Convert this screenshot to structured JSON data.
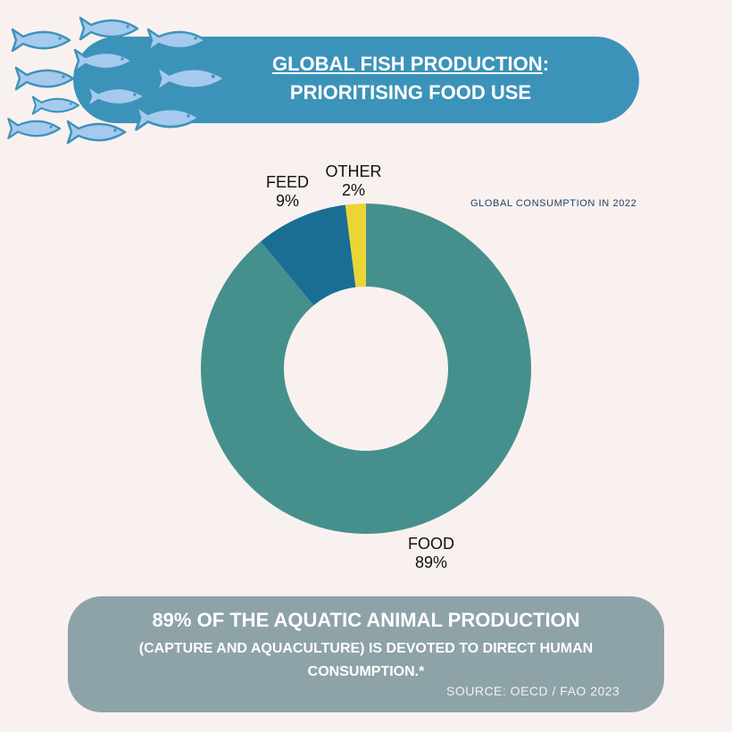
{
  "header": {
    "title_main": "GLOBAL FISH PRODUCTION",
    "title_colon": ":",
    "title_sub": "PRIORITISING FOOD USE"
  },
  "chart_subtitle": "GLOBAL CONSUMPTION IN 2022",
  "chart_data": {
    "type": "pie",
    "subtitle": "GLOBAL CONSUMPTION IN 2022",
    "categories": [
      "FOOD",
      "FEED",
      "OTHER"
    ],
    "values": [
      89,
      9,
      2
    ],
    "value_labels": [
      "89%",
      "9%",
      "2%"
    ],
    "colors": [
      "#45908c",
      "#1a6e94",
      "#ead534"
    ],
    "donut": true
  },
  "labels": {
    "food_name": "FOOD",
    "food_value": "89%",
    "feed_name": "FEED",
    "feed_value": "9%",
    "other_name": "OTHER",
    "other_value": "2%"
  },
  "footer": {
    "headline": "89% OF THE AQUATIC ANIMAL PRODUCTION",
    "body": "(CAPTURE AND AQUACULTURE) IS DEVOTED TO DIRECT HUMAN CONSUMPTION.*",
    "source": "SOURCE: OECD / FAO 2023"
  },
  "decoration": {
    "fish_icon": "fish-icon",
    "fish_color": "#a6c9ee",
    "fish_outline": "#3c93b9"
  }
}
